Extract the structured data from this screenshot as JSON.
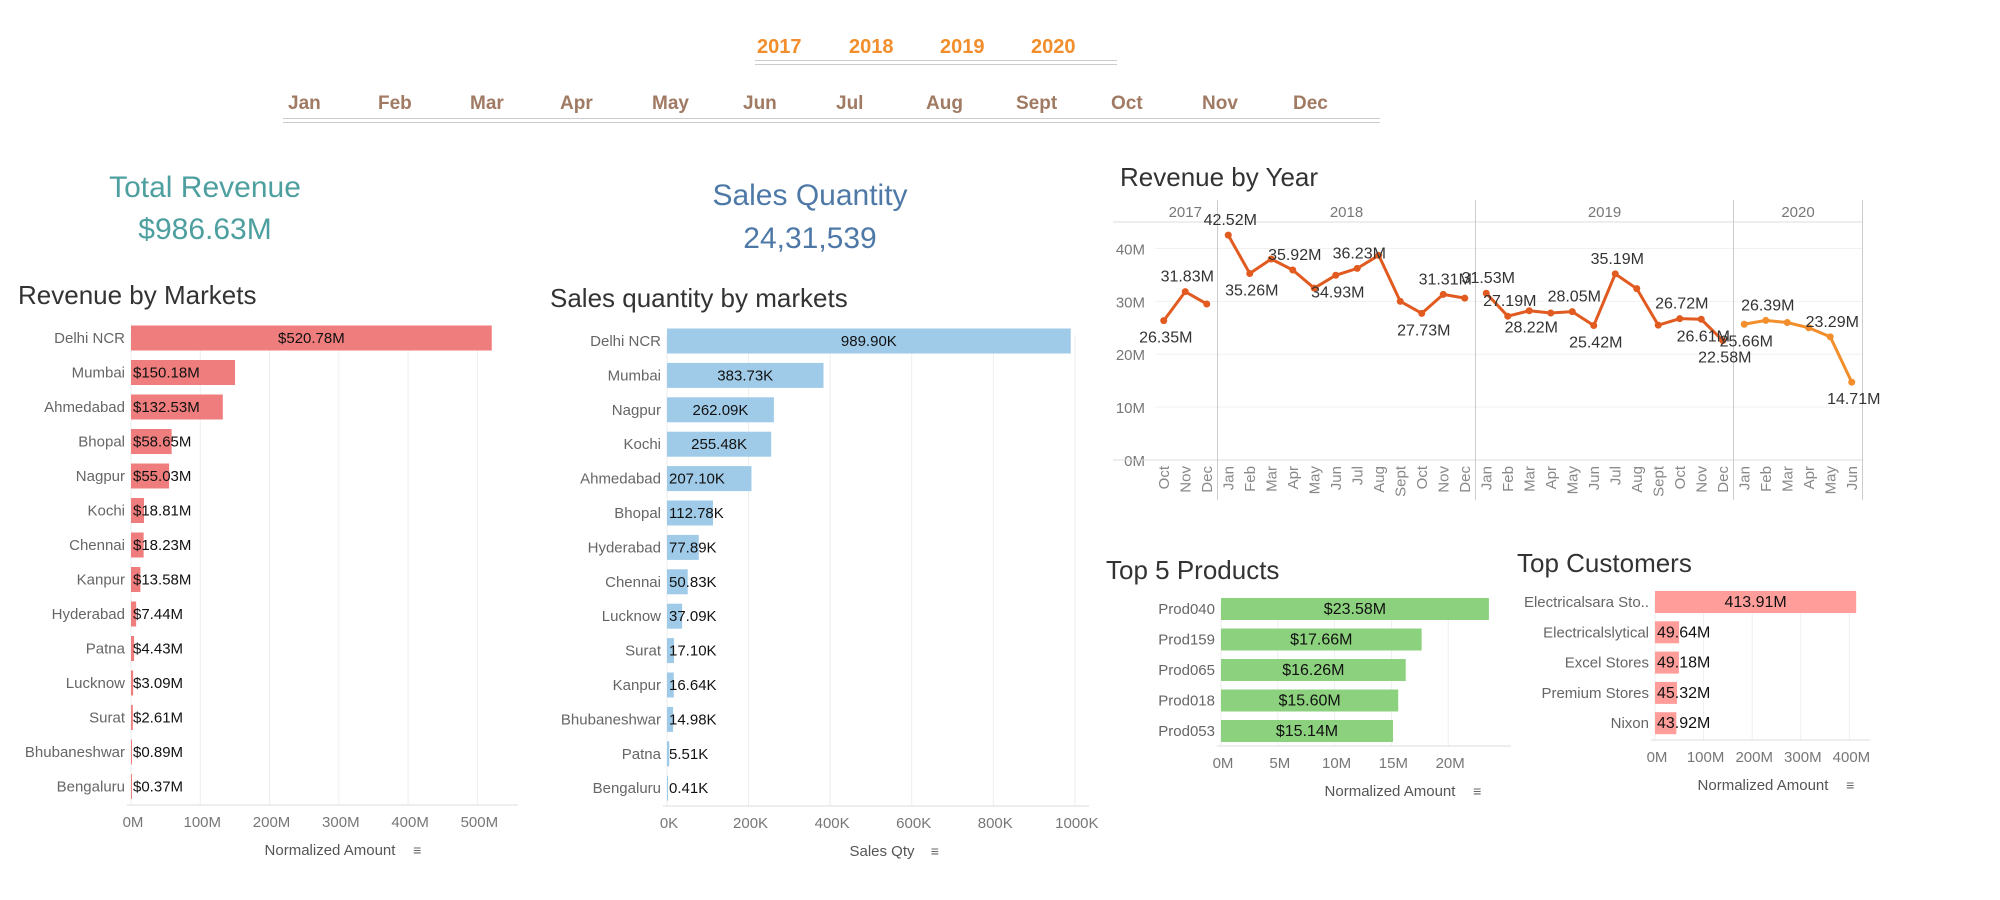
{
  "filters": {
    "years": [
      "2017",
      "2018",
      "2019",
      "2020"
    ],
    "months": [
      "Jan",
      "Feb",
      "Mar",
      "Apr",
      "May",
      "Jun",
      "Jul",
      "Aug",
      "Sept",
      "Oct",
      "Nov",
      "Dec"
    ]
  },
  "kpis": {
    "revenue_title": "Total Revenue",
    "revenue_value": "$986.63M",
    "qty_title": "Sales Quantity",
    "qty_value": "24,31,539"
  },
  "colors": {
    "revenue_bar": "#f07d7d",
    "qty_bar": "#a0cbe8",
    "product_bar": "#8cd17d",
    "customer_bar": "#ff9d9a",
    "line": "#e15a1f",
    "line_2020": "#f28e2b",
    "kpi_revenue": "#4e9f9f",
    "kpi_qty": "#4e79a7"
  },
  "chart_data": [
    {
      "id": "revenue-by-markets",
      "type": "bar",
      "title": "Revenue by Markets",
      "categories": [
        "Delhi NCR",
        "Mumbai",
        "Ahmedabad",
        "Bhopal",
        "Nagpur",
        "Kochi",
        "Chennai",
        "Kanpur",
        "Hyderabad",
        "Patna",
        "Lucknow",
        "Surat",
        "Bhubaneshwar",
        "Bengaluru"
      ],
      "values": [
        520.78,
        150.18,
        132.53,
        58.65,
        55.03,
        18.81,
        18.23,
        13.58,
        7.44,
        4.43,
        3.09,
        2.61,
        0.89,
        0.37
      ],
      "labels": [
        "$520.78M",
        "$150.18M",
        "$132.53M",
        "$58.65M",
        "$55.03M",
        "$18.81M",
        "$18.23M",
        "$13.58M",
        "$7.44M",
        "$4.43M",
        "$3.09M",
        "$2.61M",
        "$0.89M",
        "$0.37M"
      ],
      "xlim": [
        0,
        550
      ],
      "ticks": [
        0,
        100,
        200,
        300,
        400,
        500
      ],
      "tick_labels": [
        "0M",
        "100M",
        "200M",
        "300M",
        "400M",
        "500M"
      ],
      "xlabel": "Normalized Amount"
    },
    {
      "id": "sales-qty-by-markets",
      "type": "bar",
      "title": "Sales quantity by markets",
      "categories": [
        "Delhi NCR",
        "Mumbai",
        "Nagpur",
        "Kochi",
        "Ahmedabad",
        "Bhopal",
        "Hyderabad",
        "Chennai",
        "Lucknow",
        "Surat",
        "Kanpur",
        "Bhubaneshwar",
        "Patna",
        "Bengaluru"
      ],
      "values": [
        989.9,
        383.73,
        262.09,
        255.48,
        207.1,
        112.78,
        77.89,
        50.83,
        37.09,
        17.1,
        16.64,
        14.98,
        5.51,
        0.41
      ],
      "labels": [
        "989.90K",
        "383.73K",
        "262.09K",
        "255.48K",
        "207.10K",
        "112.78K",
        "77.89K",
        "50.83K",
        "37.09K",
        "17.10K",
        "16.64K",
        "14.98K",
        "5.51K",
        "0.41K"
      ],
      "xlim": [
        0,
        1020
      ],
      "ticks": [
        0,
        200,
        400,
        600,
        800,
        1000
      ],
      "tick_labels": [
        "0K",
        "200K",
        "400K",
        "600K",
        "800K",
        "1000K"
      ],
      "xlabel": "Sales Qty"
    },
    {
      "id": "revenue-by-year",
      "type": "line",
      "title": "Revenue by Year",
      "panels": [
        {
          "year": "2017",
          "months": [
            "Oct",
            "Nov",
            "Dec"
          ],
          "values": [
            26.35,
            31.83,
            29.5
          ]
        },
        {
          "year": "2018",
          "months": [
            "Jan",
            "Feb",
            "Mar",
            "Apr",
            "May",
            "Jun",
            "Jul",
            "Aug",
            "Sept",
            "Oct",
            "Nov",
            "Dec"
          ],
          "values": [
            42.52,
            35.26,
            38.0,
            35.92,
            32.5,
            34.93,
            36.23,
            38.7,
            30.0,
            27.73,
            31.31,
            30.6
          ]
        },
        {
          "year": "2019",
          "months": [
            "Jan",
            "Feb",
            "Mar",
            "Apr",
            "May",
            "Jun",
            "Jul",
            "Aug",
            "Sept",
            "Oct",
            "Nov",
            "Dec"
          ],
          "values": [
            31.53,
            27.19,
            28.22,
            27.8,
            28.05,
            25.42,
            35.19,
            32.4,
            25.5,
            26.72,
            26.61,
            22.58
          ]
        },
        {
          "year": "2020",
          "months": [
            "Jan",
            "Feb",
            "Mar",
            "Apr",
            "May",
            "Jun"
          ],
          "values": [
            25.66,
            26.39,
            26.0,
            25.0,
            23.29,
            14.71
          ]
        }
      ],
      "point_labels": [
        {
          "panel": 0,
          "i": 0,
          "text": "26.35M",
          "pos": "below"
        },
        {
          "panel": 0,
          "i": 1,
          "text": "31.83M",
          "pos": "above"
        },
        {
          "panel": 1,
          "i": 0,
          "text": "42.52M",
          "pos": "above"
        },
        {
          "panel": 1,
          "i": 1,
          "text": "35.26M",
          "pos": "below"
        },
        {
          "panel": 1,
          "i": 3,
          "text": "35.92M",
          "pos": "above"
        },
        {
          "panel": 1,
          "i": 5,
          "text": "34.93M",
          "pos": "below"
        },
        {
          "panel": 1,
          "i": 6,
          "text": "36.23M",
          "pos": "above"
        },
        {
          "panel": 1,
          "i": 9,
          "text": "27.73M",
          "pos": "below"
        },
        {
          "panel": 1,
          "i": 10,
          "text": "31.31M",
          "pos": "above"
        },
        {
          "panel": 2,
          "i": 0,
          "text": "31.53M",
          "pos": "above"
        },
        {
          "panel": 2,
          "i": 1,
          "text": "27.19M",
          "pos": "above"
        },
        {
          "panel": 2,
          "i": 2,
          "text": "28.22M",
          "pos": "below"
        },
        {
          "panel": 2,
          "i": 4,
          "text": "28.05M",
          "pos": "above"
        },
        {
          "panel": 2,
          "i": 5,
          "text": "25.42M",
          "pos": "below"
        },
        {
          "panel": 2,
          "i": 6,
          "text": "35.19M",
          "pos": "above"
        },
        {
          "panel": 2,
          "i": 9,
          "text": "26.72M",
          "pos": "above"
        },
        {
          "panel": 2,
          "i": 10,
          "text": "26.61M",
          "pos": "below"
        },
        {
          "panel": 2,
          "i": 11,
          "text": "22.58M",
          "pos": "below"
        },
        {
          "panel": 3,
          "i": 0,
          "text": "25.66M",
          "pos": "below"
        },
        {
          "panel": 3,
          "i": 1,
          "text": "26.39M",
          "pos": "above"
        },
        {
          "panel": 3,
          "i": 4,
          "text": "23.29M",
          "pos": "above"
        },
        {
          "panel": 3,
          "i": 5,
          "text": "14.71M",
          "pos": "below"
        }
      ],
      "ylim": [
        0,
        45
      ],
      "ticks": [
        0,
        10,
        20,
        30,
        40
      ],
      "tick_labels": [
        "0M",
        "10M",
        "20M",
        "30M",
        "40M"
      ]
    },
    {
      "id": "top-5-products",
      "type": "bar",
      "title": "Top 5 Products",
      "categories": [
        "Prod040",
        "Prod159",
        "Prod065",
        "Prod018",
        "Prod053"
      ],
      "values": [
        23.58,
        17.66,
        16.26,
        15.6,
        15.14
      ],
      "labels": [
        "$23.58M",
        "$17.66M",
        "$16.26M",
        "$15.60M",
        "$15.14M"
      ],
      "xlim": [
        0,
        25
      ],
      "ticks": [
        0,
        5,
        10,
        15,
        20
      ],
      "tick_labels": [
        "0M",
        "5M",
        "10M",
        "15M",
        "20M"
      ],
      "xlabel": "Normalized Amount"
    },
    {
      "id": "top-customers",
      "type": "bar",
      "title": "Top Customers",
      "categories": [
        "Electricalsara Sto..",
        "Electricalslytical",
        "Excel Stores",
        "Premium Stores",
        "Nixon"
      ],
      "values": [
        413.91,
        49.64,
        49.18,
        45.32,
        43.92
      ],
      "labels": [
        "413.91M",
        "49.64M",
        "49.18M",
        "45.32M",
        "43.92M"
      ],
      "xlim": [
        0,
        430
      ],
      "ticks": [
        0,
        100,
        200,
        300,
        400
      ],
      "tick_labels": [
        "0M",
        "100M",
        "200M",
        "300M",
        "400M"
      ],
      "xlabel": "Normalized Amount"
    }
  ]
}
